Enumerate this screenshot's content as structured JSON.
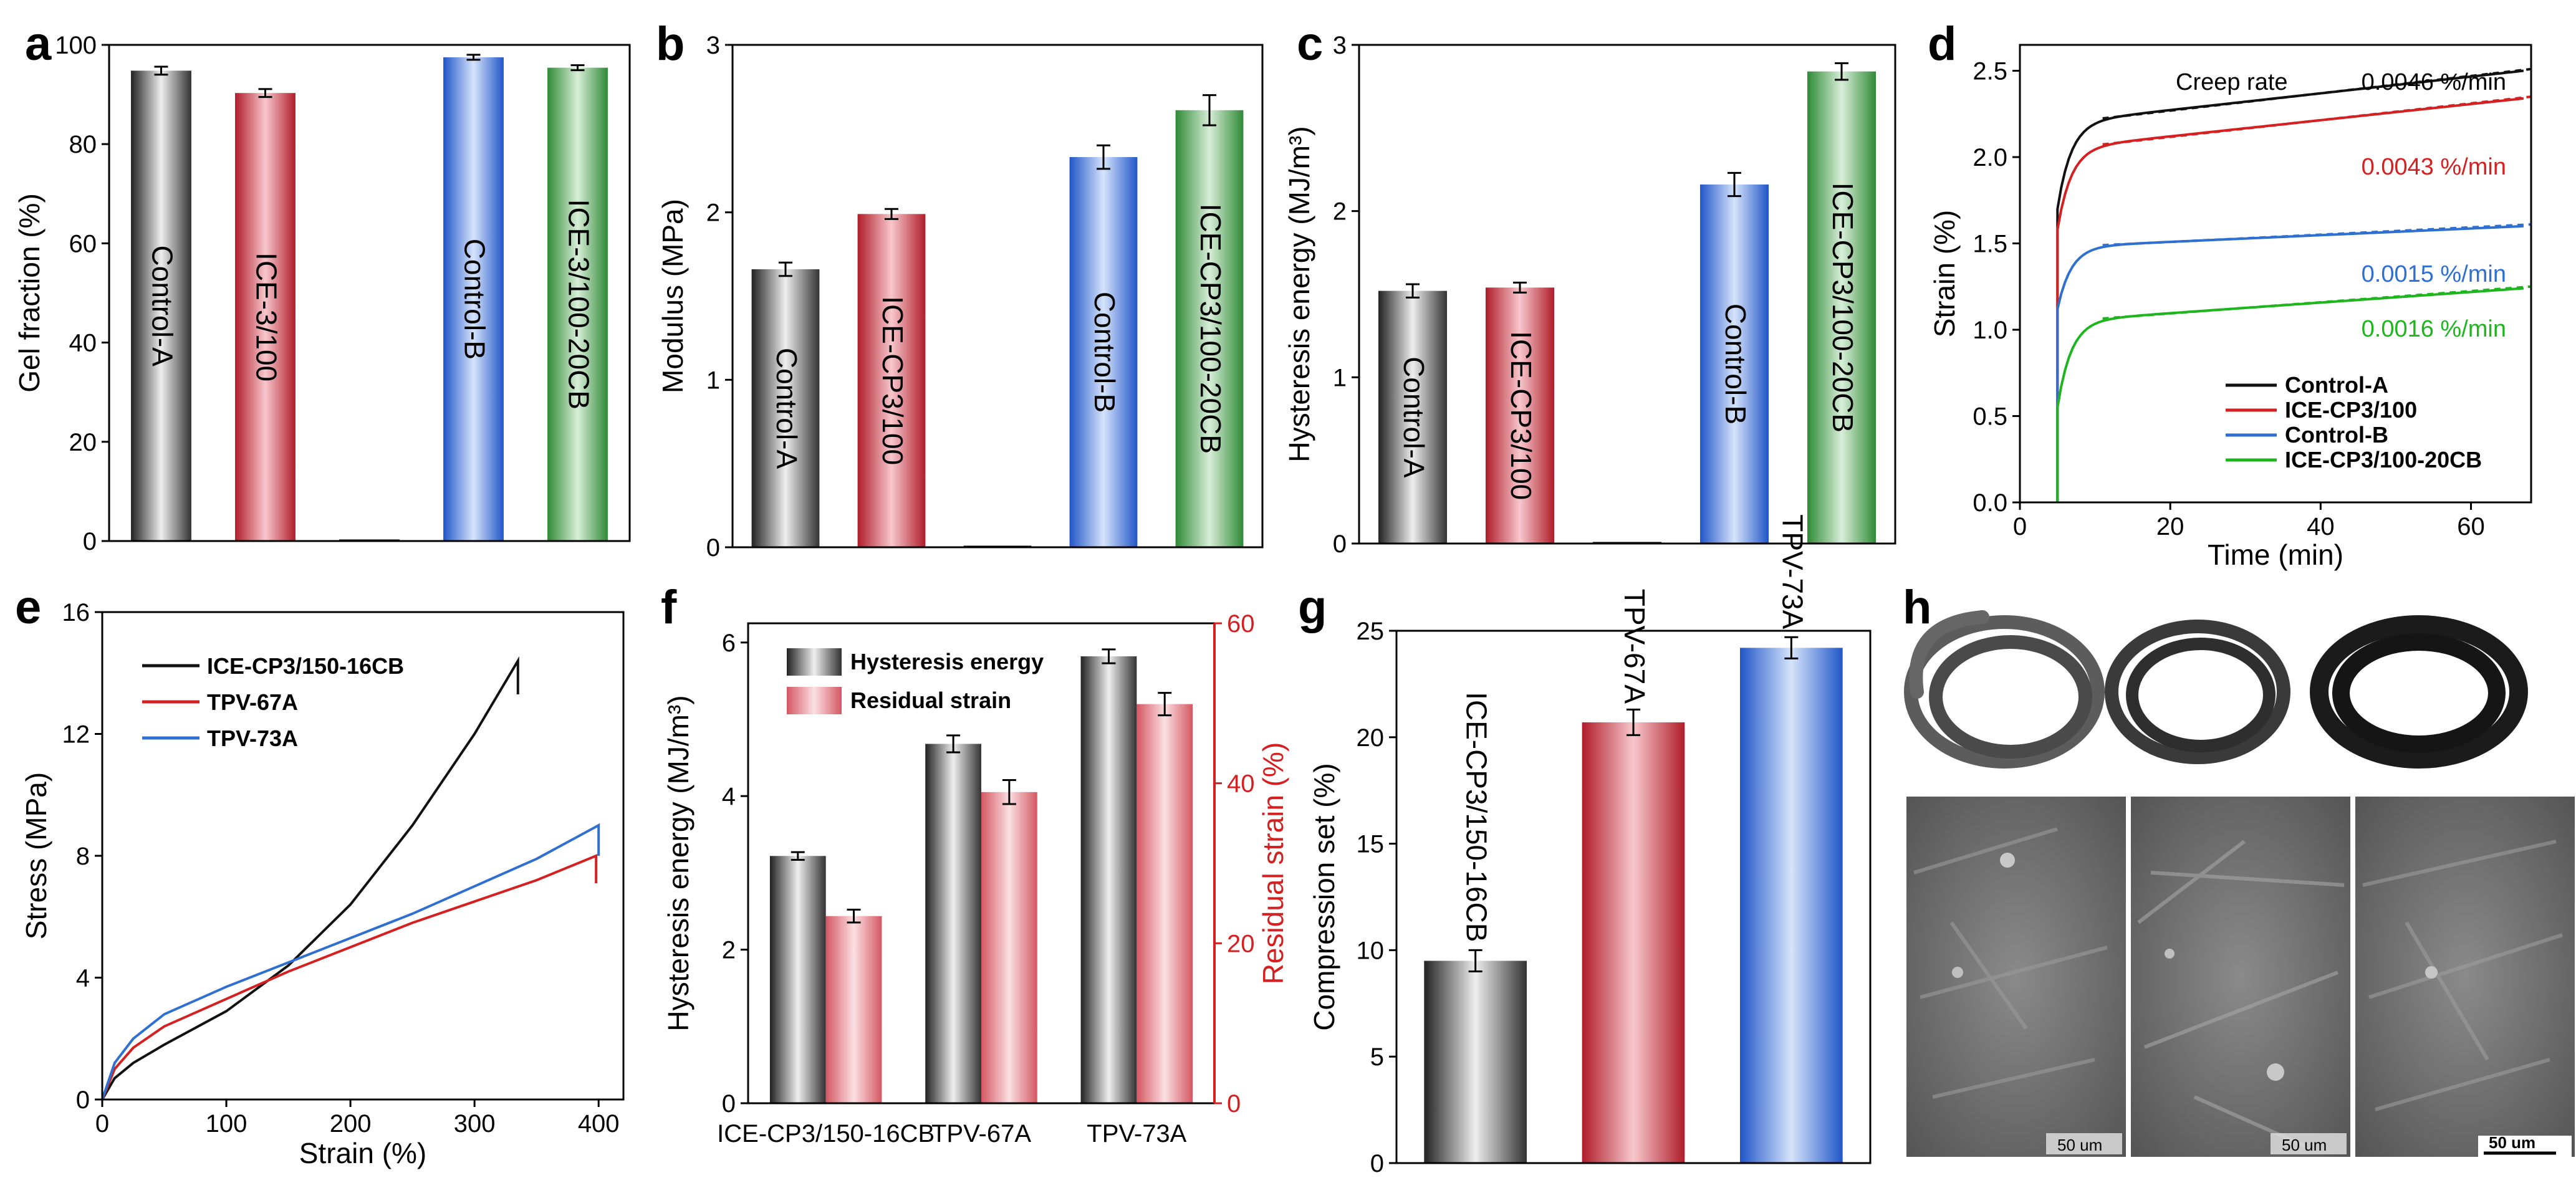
{
  "chart_data": [
    {
      "panel": "a",
      "type": "bar",
      "categories": [
        "Control-A",
        "ICE-3/100",
        "",
        "Control-B",
        "ICE-3/100-20CB"
      ],
      "values": [
        94.8,
        90.3,
        0,
        97.5,
        95.4
      ],
      "errors": [
        0.8,
        0.8,
        0,
        0.5,
        0.5
      ],
      "colors": [
        "#555555",
        "#c8404a",
        "#555555",
        "#3d79d8",
        "#4a9a4f"
      ],
      "ylabel": "Gel fraction (%)",
      "ylim": [
        0,
        100
      ],
      "yticks": [
        "0",
        "20",
        "40",
        "60",
        "80",
        "100"
      ]
    },
    {
      "panel": "b",
      "type": "bar",
      "categories": [
        "Control-A",
        "ICE-CP3/100",
        "",
        "Control-B",
        "ICE-CP3/100-20CB"
      ],
      "values": [
        1.66,
        1.99,
        0,
        2.33,
        2.61
      ],
      "errors": [
        0.04,
        0.03,
        0,
        0.07,
        0.09
      ],
      "colors": [
        "#555555",
        "#c8404a",
        "#555555",
        "#3d79d8",
        "#4a9a4f"
      ],
      "ylabel": "Modulus (MPa)",
      "ylim": [
        0,
        3
      ],
      "yticks": [
        "0",
        "1",
        "2",
        "3"
      ]
    },
    {
      "panel": "c",
      "type": "bar",
      "categories": [
        "Control-A",
        "ICE-CP3/100",
        "",
        "Control-B",
        "ICE-CP3/100-20CB"
      ],
      "values": [
        1.52,
        1.54,
        0,
        2.16,
        2.84
      ],
      "errors": [
        0.04,
        0.03,
        0,
        0.07,
        0.05
      ],
      "colors": [
        "#555555",
        "#c8404a",
        "#555555",
        "#3d79d8",
        "#4a9a4f"
      ],
      "ylabel": "Hysteresis energy (MJ/m³)",
      "ylim": [
        0,
        3
      ],
      "yticks": [
        "0",
        "1",
        "2",
        "3"
      ]
    },
    {
      "panel": "d",
      "type": "line",
      "xlabel": "Time (min)",
      "ylabel": "Strain (%)",
      "xlim": [
        0,
        68
      ],
      "ylim": [
        0,
        2.65
      ],
      "xticks": [
        "0",
        "20",
        "40",
        "60"
      ],
      "yticks": [
        "0.0",
        "0.5",
        "1.0",
        "1.5",
        "2.0",
        "2.5"
      ],
      "annotation_title": "Creep rate",
      "series": [
        {
          "name": "Control-A",
          "color": "#111111",
          "start": 5,
          "jump": 1.7,
          "plateau": 2.2,
          "end": 2.5,
          "rate_label": "0.0046 %/min"
        },
        {
          "name": "ICE-CP3/100",
          "color": "#d42020",
          "start": 5,
          "jump": 1.58,
          "plateau": 2.05,
          "end": 2.34,
          "rate_label": "0.0043 %/min"
        },
        {
          "name": "Control-B",
          "color": "#2f6fd0",
          "start": 5,
          "jump": 1.12,
          "plateau": 1.48,
          "end": 1.6,
          "rate_label": "0.0015 %/min"
        },
        {
          "name": "ICE-CP3/100-20CB",
          "color": "#1fb51f",
          "start": 5,
          "jump": 0.55,
          "plateau": 1.05,
          "end": 1.24,
          "rate_label": "0.0016 %/min"
        }
      ]
    },
    {
      "panel": "e",
      "type": "line",
      "xlabel": "Strain (%)",
      "ylabel": "Stress (MPa)",
      "xlim": [
        0,
        420
      ],
      "ylim": [
        0,
        16
      ],
      "xticks": [
        "0",
        "100",
        "200",
        "300",
        "400"
      ],
      "yticks": [
        "0",
        "4",
        "8",
        "12",
        "16"
      ],
      "series": [
        {
          "name": "ICE-CP3/150-16CB",
          "color": "#111111",
          "points": [
            [
              0,
              0
            ],
            [
              10,
              0.7
            ],
            [
              25,
              1.2
            ],
            [
              50,
              1.8
            ],
            [
              100,
              2.9
            ],
            [
              150,
              4.4
            ],
            [
              200,
              6.4
            ],
            [
              250,
              9.0
            ],
            [
              300,
              12.0
            ],
            [
              335,
              14.4
            ]
          ],
          "drop": [
            335,
            13.3
          ]
        },
        {
          "name": "TPV-67A",
          "color": "#d42020",
          "points": [
            [
              0,
              0
            ],
            [
              10,
              1.0
            ],
            [
              25,
              1.7
            ],
            [
              50,
              2.4
            ],
            [
              100,
              3.3
            ],
            [
              150,
              4.2
            ],
            [
              200,
              5.0
            ],
            [
              250,
              5.8
            ],
            [
              300,
              6.5
            ],
            [
              350,
              7.2
            ],
            [
              398,
              8.0
            ]
          ],
          "drop": [
            398,
            7.1
          ]
        },
        {
          "name": "TPV-73A",
          "color": "#2f6fd0",
          "points": [
            [
              0,
              0
            ],
            [
              10,
              1.2
            ],
            [
              25,
              2.0
            ],
            [
              50,
              2.8
            ],
            [
              100,
              3.7
            ],
            [
              150,
              4.5
            ],
            [
              200,
              5.3
            ],
            [
              250,
              6.1
            ],
            [
              300,
              7.0
            ],
            [
              350,
              7.9
            ],
            [
              400,
              9.0
            ]
          ],
          "drop": [
            400,
            8.0
          ]
        }
      ]
    },
    {
      "panel": "f",
      "type": "bar",
      "categories": [
        "ICE-CP3/150-16CB",
        "TPV-67A",
        "TPV-73A"
      ],
      "ylabel": "Hysteresis energy (MJ/m³)",
      "y2label": "Residual strain (%)",
      "ylim": [
        0,
        6.25
      ],
      "y2lim": [
        0,
        60
      ],
      "yticks": [
        "0",
        "2",
        "4",
        "6"
      ],
      "y2ticks": [
        "0",
        "20",
        "40",
        "60"
      ],
      "series": [
        {
          "name": "Hysteresis energy",
          "axis": "left",
          "color": "#555555",
          "values": [
            3.22,
            4.68,
            5.82
          ],
          "errors": [
            0.05,
            0.11,
            0.09
          ]
        },
        {
          "name": "Residual strain",
          "axis": "right",
          "color": "#d8707a",
          "values": [
            23.4,
            38.9,
            49.9
          ],
          "errors": [
            0.8,
            1.5,
            1.4
          ]
        }
      ]
    },
    {
      "panel": "g",
      "type": "bar",
      "categories": [
        "ICE-CP3/150-16CB",
        "TPV-67A",
        "TPV-73A"
      ],
      "values": [
        9.5,
        20.7,
        24.2
      ],
      "errors": [
        0.5,
        0.6,
        0.5
      ],
      "colors": [
        "#555555",
        "#c8404a",
        "#3d79d8"
      ],
      "ylabel": "Compression set (%)",
      "ylim": [
        0,
        25
      ],
      "yticks": [
        "0",
        "5",
        "10",
        "15",
        "20",
        "25"
      ]
    }
  ],
  "images_h": {
    "panel": "h",
    "scale_labels": [
      "50 um",
      "50 um",
      "50 um"
    ]
  }
}
